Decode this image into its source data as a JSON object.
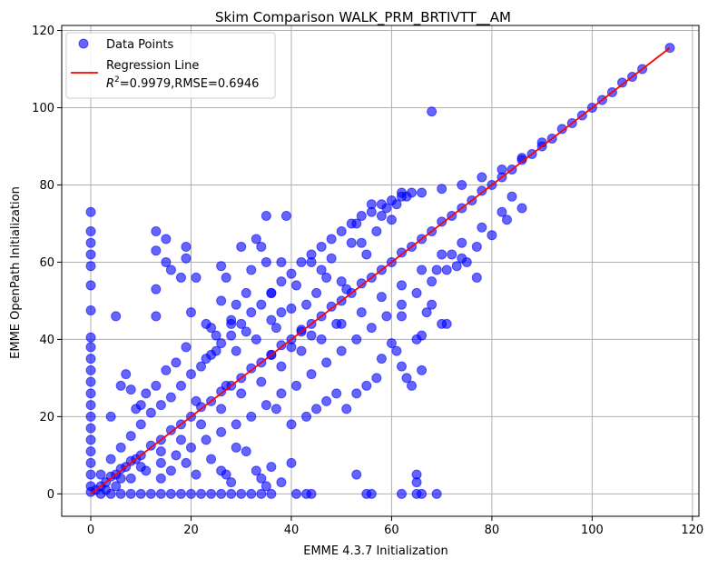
{
  "chart_data": {
    "type": "scatter",
    "title": "Skim Comparison WALK_PRM_BRTIVTT__AM",
    "xlabel": "EMME 4.3.7 Initialization",
    "ylabel": "EMME OpenPath Initialization",
    "xlim": [
      -5.8,
      121.3
    ],
    "ylim": [
      -5.8,
      121.3
    ],
    "xticks": [
      0,
      20,
      40,
      60,
      80,
      100,
      120
    ],
    "yticks": [
      0,
      20,
      40,
      60,
      80,
      100,
      120
    ],
    "grid": true,
    "legend_position": "top-left",
    "legend": {
      "points_label": "Data Points",
      "line_label": "Regression Line",
      "stats_prefix": "R",
      "stats_exp": "2",
      "stats_suffix": "=0.9979,RMSE=0.6946"
    },
    "colors": {
      "points": "#0000ff",
      "line": "#ff0000",
      "grid": "#b0b0b0"
    },
    "regression": {
      "x": [
        0,
        115.5
      ],
      "y": [
        0,
        115.5
      ]
    },
    "series": [
      {
        "name": "Data Points",
        "points": [
          [
            0,
            0.5
          ],
          [
            0,
            2
          ],
          [
            0,
            5
          ],
          [
            0,
            8
          ],
          [
            0,
            11
          ],
          [
            0,
            14
          ],
          [
            0,
            17
          ],
          [
            0,
            20
          ],
          [
            0,
            23
          ],
          [
            0,
            26
          ],
          [
            0,
            29
          ],
          [
            0,
            32
          ],
          [
            0,
            35
          ],
          [
            0,
            38
          ],
          [
            0,
            40.5
          ],
          [
            0,
            47.5
          ],
          [
            0,
            54
          ],
          [
            0,
            59
          ],
          [
            0,
            62
          ],
          [
            0,
            65
          ],
          [
            0,
            68
          ],
          [
            0,
            73
          ],
          [
            1,
            1
          ],
          [
            2,
            2
          ],
          [
            3,
            3
          ],
          [
            4,
            4.5
          ],
          [
            5,
            5
          ],
          [
            6,
            6.5
          ],
          [
            7,
            7
          ],
          [
            8,
            8.5
          ],
          [
            9,
            9
          ],
          [
            10,
            10
          ],
          [
            12,
            12.5
          ],
          [
            14,
            14
          ],
          [
            16,
            16.5
          ],
          [
            18,
            18
          ],
          [
            20,
            20
          ],
          [
            22,
            22.5
          ],
          [
            24,
            24
          ],
          [
            26,
            26.5
          ],
          [
            28,
            28
          ],
          [
            30,
            30
          ],
          [
            32,
            32.5
          ],
          [
            34,
            34
          ],
          [
            36,
            36
          ],
          [
            38,
            38.5
          ],
          [
            40,
            40
          ],
          [
            42,
            42.5
          ],
          [
            44,
            44
          ],
          [
            46,
            46
          ],
          [
            48,
            48.5
          ],
          [
            50,
            50
          ],
          [
            52,
            52
          ],
          [
            54,
            54.5
          ],
          [
            56,
            56
          ],
          [
            58,
            58
          ],
          [
            60,
            60
          ],
          [
            62,
            62.5
          ],
          [
            64,
            64
          ],
          [
            66,
            66
          ],
          [
            68,
            68
          ],
          [
            70,
            70.5
          ],
          [
            72,
            72
          ],
          [
            74,
            74
          ],
          [
            76,
            76
          ],
          [
            78,
            78.5
          ],
          [
            80,
            80
          ],
          [
            82,
            82
          ],
          [
            84,
            84
          ],
          [
            86,
            86.5
          ],
          [
            88,
            88
          ],
          [
            90,
            90
          ],
          [
            92,
            92
          ],
          [
            94,
            94.5
          ],
          [
            96,
            96
          ],
          [
            98,
            98
          ],
          [
            100,
            100
          ],
          [
            102,
            102
          ],
          [
            104,
            104
          ],
          [
            106,
            106.5
          ],
          [
            108,
            108
          ],
          [
            110,
            110
          ],
          [
            115.5,
            115.5
          ],
          [
            2,
            5
          ],
          [
            4,
            9
          ],
          [
            6,
            12
          ],
          [
            8,
            15
          ],
          [
            10,
            18
          ],
          [
            12,
            21
          ],
          [
            14,
            23
          ],
          [
            16,
            25
          ],
          [
            18,
            28
          ],
          [
            20,
            31
          ],
          [
            22,
            33
          ],
          [
            24,
            36
          ],
          [
            26,
            39
          ],
          [
            28,
            41
          ],
          [
            30,
            44
          ],
          [
            32,
            47
          ],
          [
            34,
            49
          ],
          [
            36,
            52
          ],
          [
            38,
            55
          ],
          [
            40,
            57
          ],
          [
            42,
            60
          ],
          [
            44,
            62
          ],
          [
            46,
            64
          ],
          [
            48,
            66
          ],
          [
            50,
            68
          ],
          [
            52,
            70
          ],
          [
            54,
            72
          ],
          [
            56,
            73
          ],
          [
            58,
            75
          ],
          [
            60,
            76
          ],
          [
            62,
            77
          ],
          [
            64,
            78
          ],
          [
            66,
            78
          ],
          [
            70,
            79
          ],
          [
            74,
            80
          ],
          [
            78,
            82
          ],
          [
            82,
            84
          ],
          [
            86,
            87
          ],
          [
            90,
            91
          ],
          [
            3,
            1
          ],
          [
            5,
            2
          ],
          [
            8,
            4
          ],
          [
            11,
            6
          ],
          [
            14,
            8
          ],
          [
            17,
            10
          ],
          [
            20,
            12
          ],
          [
            23,
            14
          ],
          [
            26,
            16
          ],
          [
            29,
            18
          ],
          [
            32,
            20
          ],
          [
            35,
            23
          ],
          [
            38,
            26
          ],
          [
            41,
            28
          ],
          [
            44,
            31
          ],
          [
            47,
            34
          ],
          [
            50,
            37
          ],
          [
            53,
            40
          ],
          [
            56,
            43
          ],
          [
            59,
            46
          ],
          [
            62,
            49
          ],
          [
            65,
            52
          ],
          [
            68,
            55
          ],
          [
            71,
            58
          ],
          [
            74,
            61
          ],
          [
            77,
            64
          ],
          [
            80,
            67
          ],
          [
            83,
            71
          ],
          [
            86,
            74
          ],
          [
            84,
            77
          ],
          [
            82,
            73
          ],
          [
            78,
            69
          ],
          [
            74,
            65
          ],
          [
            70,
            62
          ],
          [
            66,
            58
          ],
          [
            62,
            54
          ],
          [
            58,
            51
          ],
          [
            54,
            47
          ],
          [
            50,
            44
          ],
          [
            46,
            40
          ],
          [
            42,
            37
          ],
          [
            38,
            33
          ],
          [
            34,
            29
          ],
          [
            30,
            26
          ],
          [
            26,
            22
          ],
          [
            22,
            18
          ],
          [
            18,
            14
          ],
          [
            14,
            11
          ],
          [
            10,
            7
          ],
          [
            6,
            4
          ],
          [
            13,
            68
          ],
          [
            13,
            63
          ],
          [
            13,
            53
          ],
          [
            13,
            46
          ],
          [
            15,
            66
          ],
          [
            15,
            60
          ],
          [
            16,
            58
          ],
          [
            18,
            56
          ],
          [
            19,
            61
          ],
          [
            19,
            64
          ],
          [
            21,
            56
          ],
          [
            23,
            44
          ],
          [
            24,
            43
          ],
          [
            25,
            37
          ],
          [
            26,
            59
          ],
          [
            26,
            50
          ],
          [
            27,
            56
          ],
          [
            28,
            45
          ],
          [
            29,
            49
          ],
          [
            30,
            64
          ],
          [
            31,
            42
          ],
          [
            31,
            52
          ],
          [
            32,
            58
          ],
          [
            33,
            66
          ],
          [
            34,
            64
          ],
          [
            35,
            72
          ],
          [
            35,
            60
          ],
          [
            36,
            45
          ],
          [
            36,
            52
          ],
          [
            37,
            43
          ],
          [
            38,
            60
          ],
          [
            39,
            72
          ],
          [
            40,
            48
          ],
          [
            40,
            38
          ],
          [
            41,
            54
          ],
          [
            43,
            49
          ],
          [
            44,
            60
          ],
          [
            45,
            52
          ],
          [
            46,
            58
          ],
          [
            47,
            56
          ],
          [
            48,
            61
          ],
          [
            49,
            44
          ],
          [
            50,
            55
          ],
          [
            51,
            53
          ],
          [
            52,
            65
          ],
          [
            53,
            70
          ],
          [
            54,
            65
          ],
          [
            55,
            62
          ],
          [
            56,
            75
          ],
          [
            57,
            68
          ],
          [
            58,
            72
          ],
          [
            59,
            74
          ],
          [
            60,
            71
          ],
          [
            61,
            75
          ],
          [
            62,
            78
          ],
          [
            63,
            77
          ],
          [
            6,
            28
          ],
          [
            8,
            27
          ],
          [
            10,
            23
          ],
          [
            11,
            26
          ],
          [
            13,
            28
          ],
          [
            15,
            32
          ],
          [
            17,
            34
          ],
          [
            19,
            38
          ],
          [
            21,
            24
          ],
          [
            23,
            35
          ],
          [
            25,
            41
          ],
          [
            27,
            28
          ],
          [
            28,
            44
          ],
          [
            29,
            37
          ],
          [
            33,
            40
          ],
          [
            36,
            36
          ],
          [
            38,
            47
          ],
          [
            42,
            42
          ],
          [
            44,
            41
          ],
          [
            4,
            20
          ],
          [
            5,
            46
          ],
          [
            7,
            31
          ],
          [
            9,
            22
          ],
          [
            20,
            47
          ],
          [
            14,
            4
          ],
          [
            16,
            6
          ],
          [
            19,
            8
          ],
          [
            21,
            5
          ],
          [
            24,
            9
          ],
          [
            26,
            6
          ],
          [
            27,
            5
          ],
          [
            28,
            3
          ],
          [
            29,
            12
          ],
          [
            31,
            11
          ],
          [
            33,
            6
          ],
          [
            34,
            4
          ],
          [
            35,
            2
          ],
          [
            36,
            7
          ],
          [
            38,
            3
          ],
          [
            40,
            8
          ],
          [
            37,
            22
          ],
          [
            40,
            18
          ],
          [
            43,
            20
          ],
          [
            45,
            22
          ],
          [
            47,
            24
          ],
          [
            49,
            26
          ],
          [
            51,
            22
          ],
          [
            53,
            26
          ],
          [
            55,
            28
          ],
          [
            57,
            30
          ],
          [
            58,
            35
          ],
          [
            60,
            39
          ],
          [
            61,
            37
          ],
          [
            62,
            33
          ],
          [
            63,
            30
          ],
          [
            64,
            28
          ],
          [
            66,
            41
          ],
          [
            66,
            32
          ],
          [
            62,
            46
          ],
          [
            65,
            40
          ],
          [
            67,
            47
          ],
          [
            68,
            49
          ],
          [
            70,
            44
          ],
          [
            71,
            44
          ],
          [
            73,
            59
          ],
          [
            75,
            60
          ],
          [
            77,
            56
          ],
          [
            69,
            58
          ],
          [
            72,
            62
          ],
          [
            2,
            0
          ],
          [
            4,
            0
          ],
          [
            6,
            0
          ],
          [
            8,
            0
          ],
          [
            10,
            0
          ],
          [
            12,
            0
          ],
          [
            14,
            0
          ],
          [
            16,
            0
          ],
          [
            18,
            0
          ],
          [
            20,
            0
          ],
          [
            22,
            0
          ],
          [
            24,
            0
          ],
          [
            26,
            0
          ],
          [
            28,
            0
          ],
          [
            30,
            0
          ],
          [
            32,
            0
          ],
          [
            34,
            0
          ],
          [
            36,
            0
          ],
          [
            41,
            0
          ],
          [
            43,
            0
          ],
          [
            44,
            0
          ],
          [
            55,
            0
          ],
          [
            56,
            0
          ],
          [
            62,
            0
          ],
          [
            65,
            0
          ],
          [
            66,
            0
          ],
          [
            69,
            0
          ],
          [
            53,
            5
          ],
          [
            65,
            5
          ],
          [
            65,
            3
          ],
          [
            68,
            99
          ]
        ]
      }
    ]
  }
}
